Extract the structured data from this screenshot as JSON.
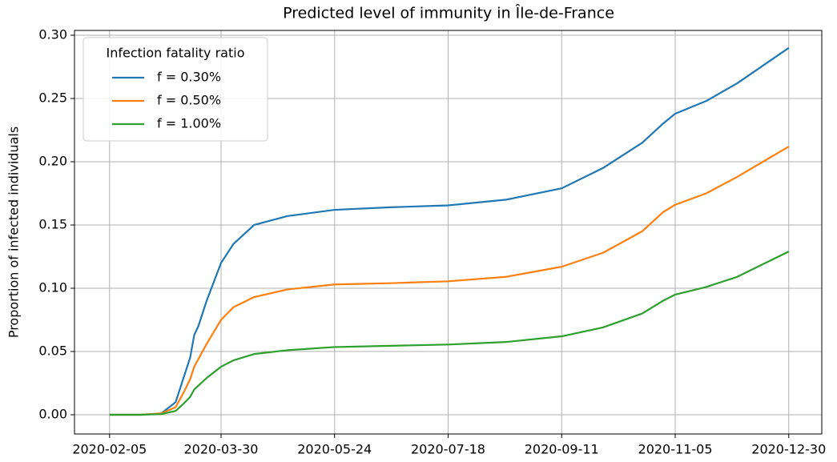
{
  "chart_data": {
    "type": "line",
    "title": "Predicted level of immunity in Île-de-France",
    "ylabel": "Proportion of infected individuals",
    "legend_title": "Infection fatality ratio",
    "legend_loc": "upper left",
    "grid": true,
    "x": [
      "2020-02-05",
      "2020-02-20",
      "2020-03-01",
      "2020-03-08",
      "2020-03-12",
      "2020-03-15",
      "2020-03-17",
      "2020-03-19",
      "2020-03-23",
      "2020-03-30",
      "2020-04-05",
      "2020-04-15",
      "2020-05-01",
      "2020-05-24",
      "2020-06-20",
      "2020-07-18",
      "2020-08-15",
      "2020-09-11",
      "2020-10-01",
      "2020-10-20",
      "2020-10-30",
      "2020-11-05",
      "2020-11-20",
      "2020-12-05",
      "2020-12-30"
    ],
    "series": [
      {
        "name": "f = 0.30%",
        "color": "#1f77b4",
        "values": [
          0,
          0,
          0.001,
          0.01,
          0.03,
          0.045,
          0.063,
          0.07,
          0.09,
          0.12,
          0.135,
          0.15,
          0.157,
          0.162,
          0.164,
          0.1655,
          0.17,
          0.179,
          0.195,
          0.215,
          0.23,
          0.238,
          0.248,
          0.262,
          0.29
        ]
      },
      {
        "name": "f = 0.50%",
        "color": "#ff7f0e",
        "values": [
          0,
          0,
          0.001,
          0.006,
          0.018,
          0.028,
          0.038,
          0.044,
          0.056,
          0.075,
          0.085,
          0.093,
          0.099,
          0.103,
          0.104,
          0.1055,
          0.109,
          0.117,
          0.128,
          0.145,
          0.16,
          0.166,
          0.175,
          0.188,
          0.212
        ]
      },
      {
        "name": "f = 1.00%",
        "color": "#2ca02c",
        "values": [
          0,
          0,
          0.0005,
          0.003,
          0.009,
          0.014,
          0.02,
          0.023,
          0.029,
          0.038,
          0.043,
          0.048,
          0.051,
          0.0535,
          0.0545,
          0.0555,
          0.0575,
          0.062,
          0.069,
          0.08,
          0.09,
          0.095,
          0.101,
          0.109,
          0.129
        ]
      }
    ],
    "xlim": [
      "2020-01-19",
      "2021-01-15"
    ],
    "xticks": [
      "2020-02-05",
      "2020-03-30",
      "2020-05-24",
      "2020-07-18",
      "2020-09-11",
      "2020-11-05",
      "2020-12-30"
    ],
    "ylim": [
      -0.0152,
      0.3038
    ],
    "yticks": [
      {
        "value": 0,
        "label": "0.00"
      },
      {
        "value": 0.05,
        "label": "0.05"
      },
      {
        "value": 0.1,
        "label": "0.10"
      },
      {
        "value": 0.15,
        "label": "0.15"
      },
      {
        "value": 0.2,
        "label": "0.20"
      },
      {
        "value": 0.25,
        "label": "0.25"
      },
      {
        "value": 0.3,
        "label": "0.30"
      }
    ]
  }
}
